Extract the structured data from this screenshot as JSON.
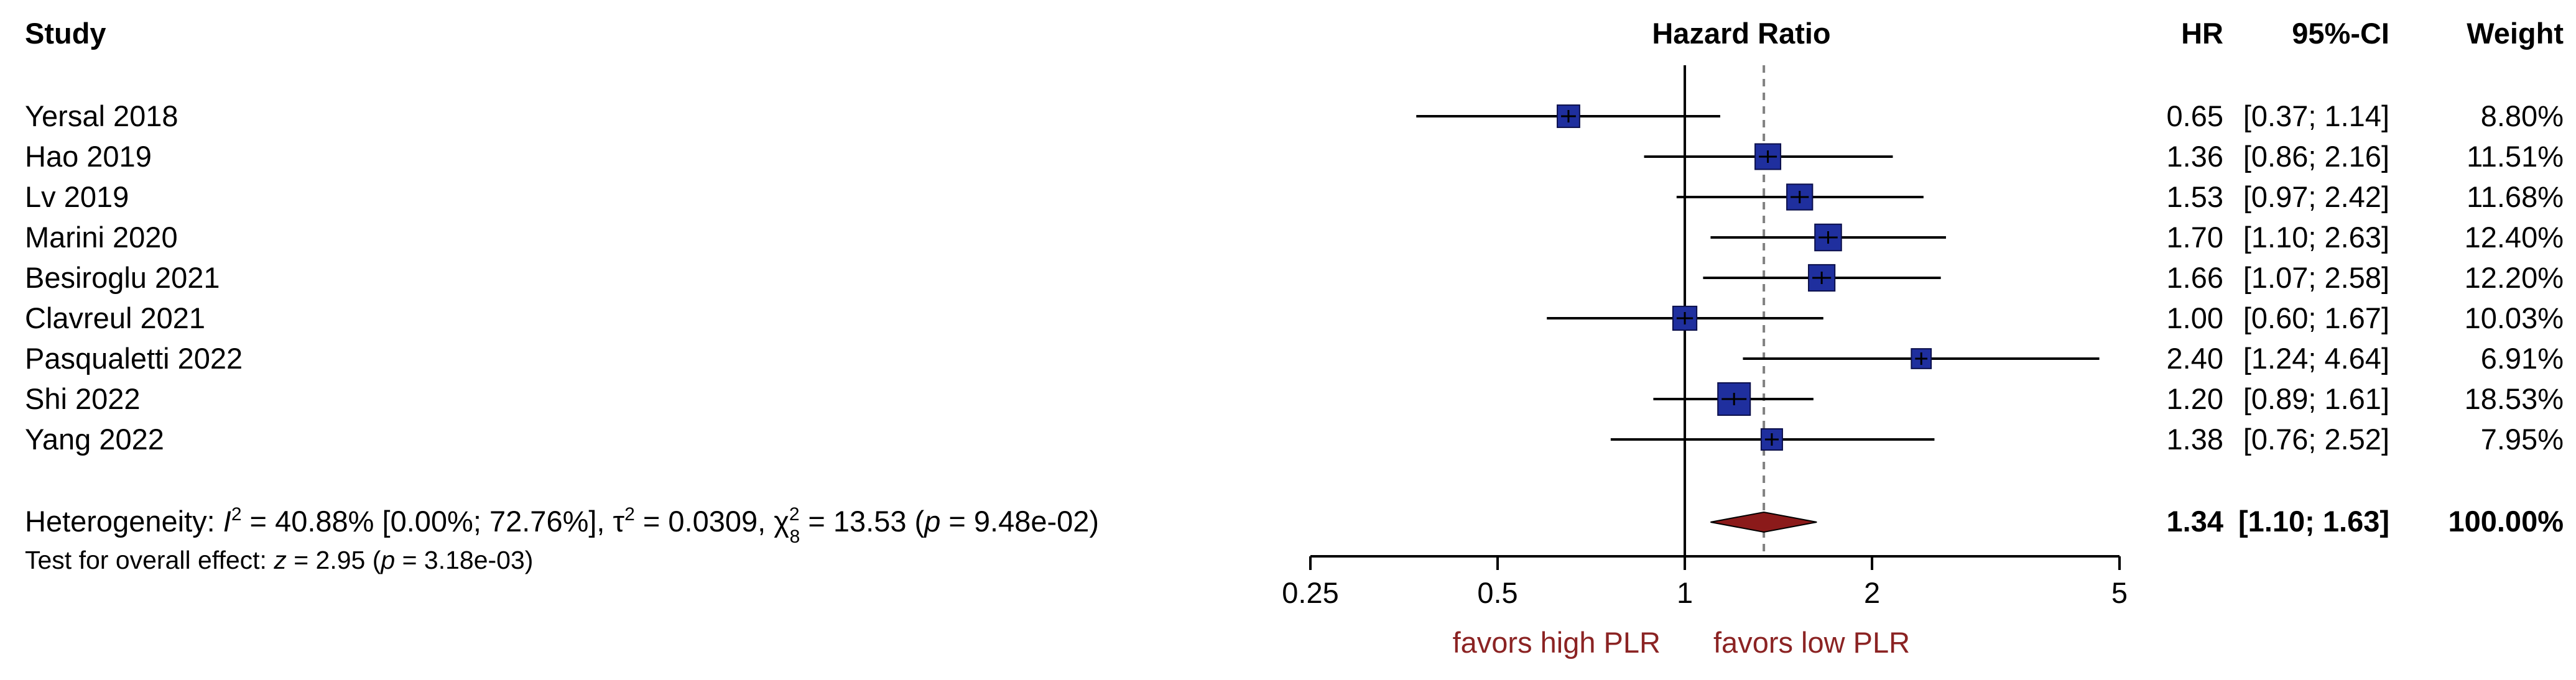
{
  "chart_data": {
    "type": "forest",
    "headers": {
      "study": "Study",
      "effect": "Hazard Ratio",
      "hr": "HR",
      "ci": "95%-CI",
      "weight": "Weight"
    },
    "studies": [
      {
        "name": "Yersal 2018",
        "hr": 0.65,
        "lower": 0.37,
        "upper": 1.14,
        "hr_text": "0.65",
        "ci_text": "[0.37; 1.14]",
        "weight": 8.8,
        "weight_text": "8.80%"
      },
      {
        "name": "Hao 2019",
        "hr": 1.36,
        "lower": 0.86,
        "upper": 2.16,
        "hr_text": "1.36",
        "ci_text": "[0.86; 2.16]",
        "weight": 11.51,
        "weight_text": "11.51%"
      },
      {
        "name": "Lv 2019",
        "hr": 1.53,
        "lower": 0.97,
        "upper": 2.42,
        "hr_text": "1.53",
        "ci_text": "[0.97; 2.42]",
        "weight": 11.68,
        "weight_text": "11.68%"
      },
      {
        "name": "Marini 2020",
        "hr": 1.7,
        "lower": 1.1,
        "upper": 2.63,
        "hr_text": "1.70",
        "ci_text": "[1.10; 2.63]",
        "weight": 12.4,
        "weight_text": "12.40%"
      },
      {
        "name": "Besiroglu 2021",
        "hr": 1.66,
        "lower": 1.07,
        "upper": 2.58,
        "hr_text": "1.66",
        "ci_text": "[1.07; 2.58]",
        "weight": 12.2,
        "weight_text": "12.20%"
      },
      {
        "name": "Clavreul 2021",
        "hr": 1.0,
        "lower": 0.6,
        "upper": 1.67,
        "hr_text": "1.00",
        "ci_text": "[0.60; 1.67]",
        "weight": 10.03,
        "weight_text": "10.03%"
      },
      {
        "name": "Pasqualetti 2022",
        "hr": 2.4,
        "lower": 1.24,
        "upper": 4.64,
        "hr_text": "2.40",
        "ci_text": "[1.24; 4.64]",
        "weight": 6.91,
        "weight_text": "6.91%"
      },
      {
        "name": "Shi 2022",
        "hr": 1.2,
        "lower": 0.89,
        "upper": 1.61,
        "hr_text": "1.20",
        "ci_text": "[0.89; 1.61]",
        "weight": 18.53,
        "weight_text": "18.53%"
      },
      {
        "name": "Yang 2022",
        "hr": 1.38,
        "lower": 0.76,
        "upper": 2.52,
        "hr_text": "1.38",
        "ci_text": "[0.76; 2.52]",
        "weight": 7.95,
        "weight_text": "7.95%"
      }
    ],
    "overall": {
      "hr": 1.34,
      "lower": 1.1,
      "upper": 1.63,
      "hr_text": "1.34",
      "ci_text": "[1.10; 1.63]",
      "weight_text": "100.00%"
    },
    "heterogeneity": {
      "prefix": "Heterogeneity: ",
      "I2_symbol": "I",
      "I2_sup": "2",
      "I2_value": " = 40.88% [0.00%; 72.76%], ",
      "tau2_symbol": "τ",
      "tau2_sup": "2",
      "tau2_value": " = 0.0309, ",
      "chi_symbol": "χ",
      "chi_sup": "2",
      "chi_sub": "8",
      "chi_value": " = 13.53 (",
      "p_symbol": "p",
      "p_value": " = 9.48e-02)"
    },
    "overall_effect": {
      "prefix": "Test for overall effect: ",
      "z_symbol": "z",
      "z_value": " = 2.95 (",
      "p_symbol": "p",
      "p_value": " = 3.18e-03)"
    },
    "x_axis": {
      "scale": "log",
      "range": [
        0.25,
        5
      ],
      "ticks": [
        0.25,
        0.5,
        1,
        2,
        5
      ],
      "tick_labels": [
        "0.25",
        "0.5",
        "1",
        "2",
        "5"
      ],
      "null_value": 1
    },
    "favors": {
      "left": "favors high PLR",
      "right": "favors low PLR"
    },
    "colors": {
      "square": "#1f2f9e",
      "diamond": "#8b1a1a",
      "favors_text": "#8b2323",
      "line": "#000000",
      "pooled_dashed": "#808080"
    }
  }
}
